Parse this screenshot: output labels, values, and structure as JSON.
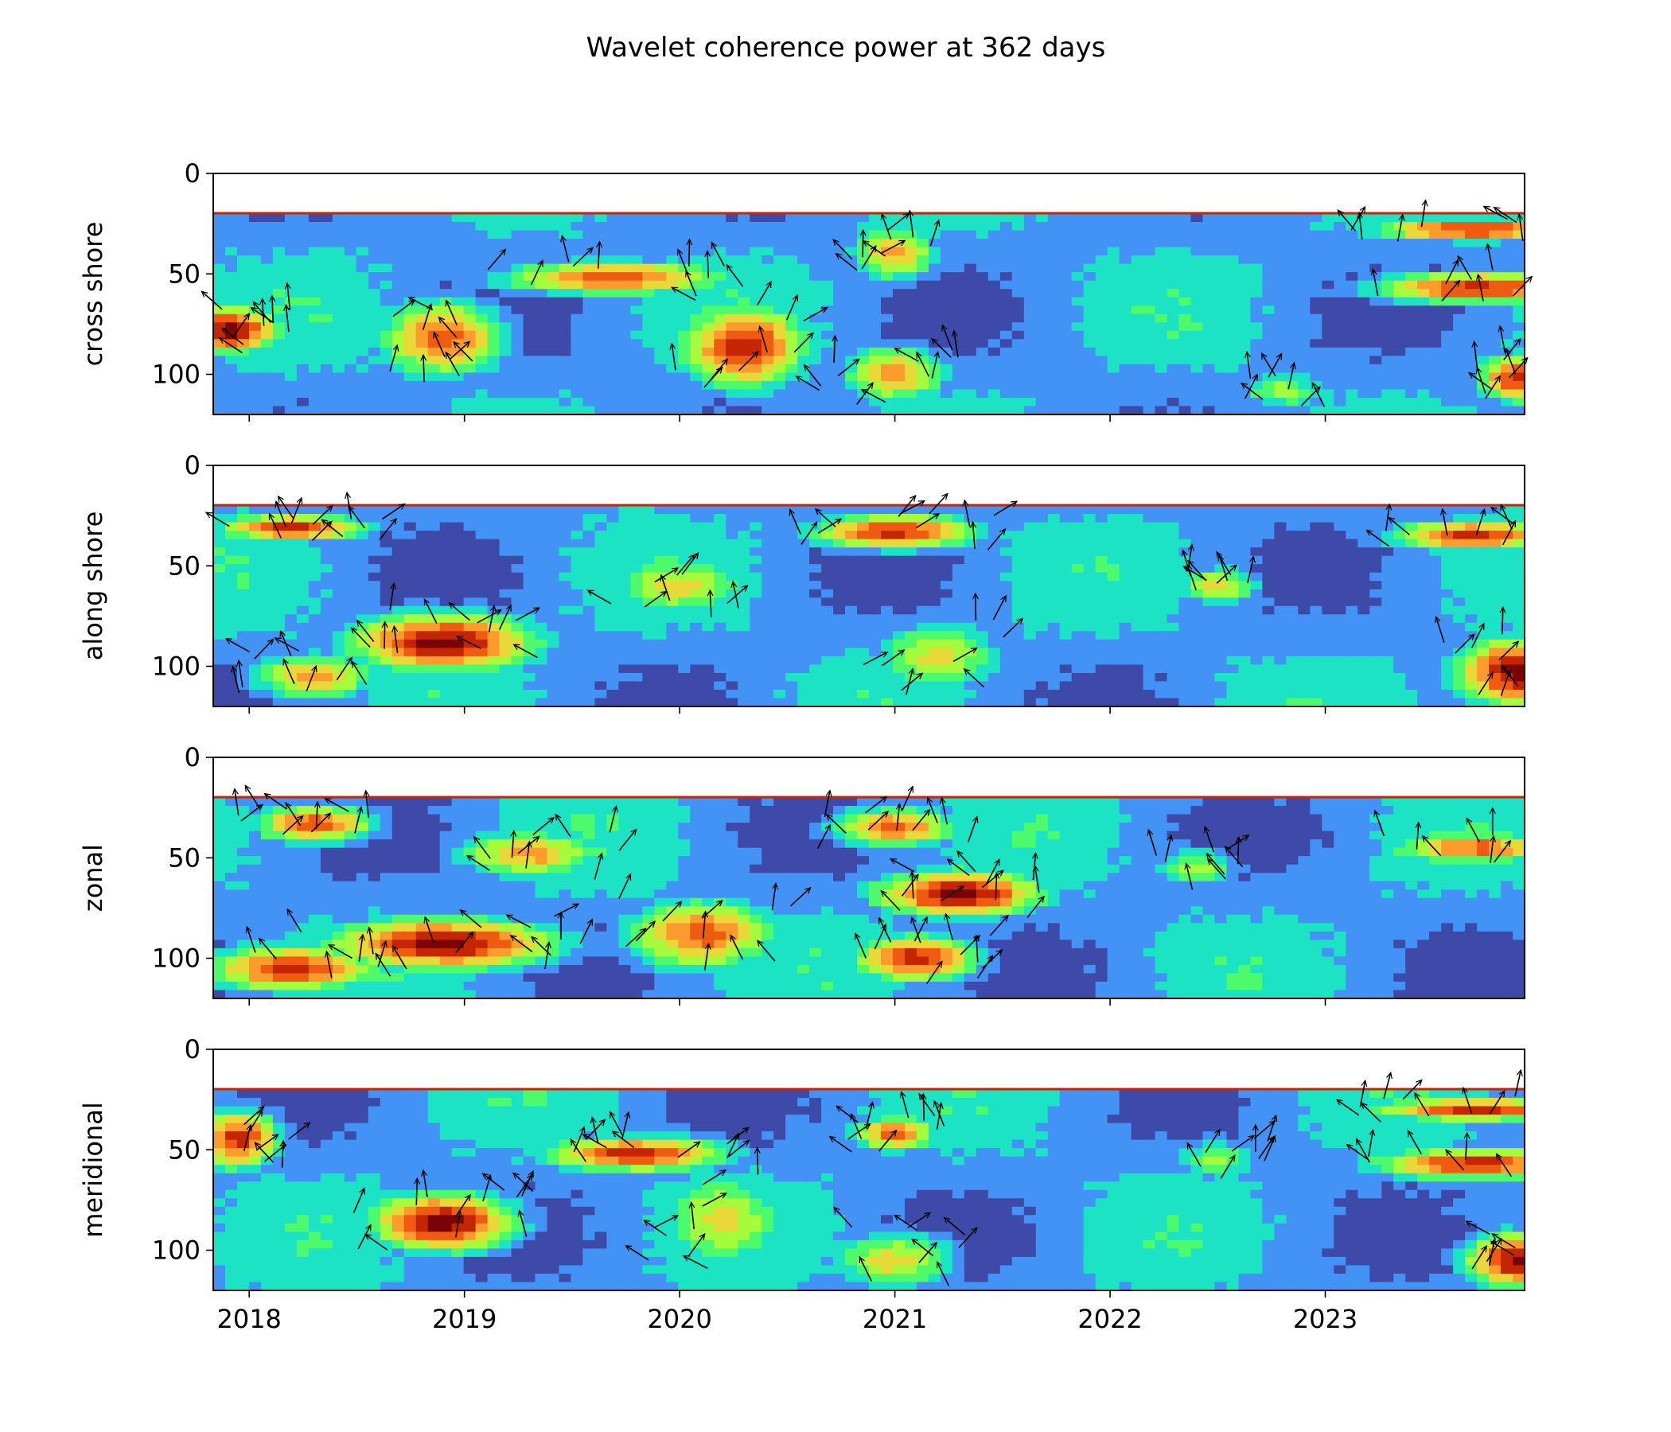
{
  "figure": {
    "title": "Wavelet coherence power at 362 days"
  },
  "chart_data": {
    "type": "heatmap",
    "title": "Wavelet coherence power at 362 days",
    "xaxis": {
      "range": [
        "2017-11-01",
        "2023-12-05"
      ],
      "ticks": [
        "2018",
        "2019",
        "2020",
        "2021",
        "2022",
        "2023"
      ]
    },
    "yaxis": {
      "range": [
        120,
        0
      ],
      "inverted": true,
      "ticks": [
        0,
        50,
        100
      ]
    },
    "colormap": [
      "#30123b",
      "#3e4aa8",
      "#4293f5",
      "#1be3c4",
      "#4dfa6b",
      "#a4fc3c",
      "#e8d838",
      "#fe9b2d",
      "#f05b12",
      "#c42503",
      "#7a0403"
    ],
    "panels": [
      {
        "ylabel": "cross shore",
        "data_top": 20,
        "hotspots": [
          {
            "t": 2017.9,
            "d": 78,
            "level": 10,
            "sx": 0.25,
            "sy": 12
          },
          {
            "t": 2018.9,
            "d": 82,
            "level": 8,
            "sx": 0.3,
            "sy": 20
          },
          {
            "t": 2019.7,
            "d": 52,
            "level": 8,
            "sx": 0.55,
            "sy": 9
          },
          {
            "t": 2020.3,
            "d": 86,
            "level": 9,
            "sx": 0.3,
            "sy": 22
          },
          {
            "t": 2021.0,
            "d": 40,
            "level": 7,
            "sx": 0.2,
            "sy": 14
          },
          {
            "t": 2021.0,
            "d": 100,
            "level": 7,
            "sx": 0.25,
            "sy": 15
          },
          {
            "t": 2023.7,
            "d": 28,
            "level": 9,
            "sx": 0.5,
            "sy": 6
          },
          {
            "t": 2023.7,
            "d": 57,
            "level": 9,
            "sx": 0.5,
            "sy": 8
          },
          {
            "t": 2023.9,
            "d": 102,
            "level": 9,
            "sx": 0.2,
            "sy": 12
          },
          {
            "t": 2022.8,
            "d": 108,
            "level": 5,
            "sx": 0.2,
            "sy": 10
          }
        ]
      },
      {
        "ylabel": "along shore",
        "data_top": 20,
        "hotspots": [
          {
            "t": 2018.2,
            "d": 31,
            "level": 9,
            "sx": 0.35,
            "sy": 7
          },
          {
            "t": 2018.9,
            "d": 88,
            "level": 10,
            "sx": 0.45,
            "sy": 15
          },
          {
            "t": 2018.3,
            "d": 105,
            "level": 7,
            "sx": 0.3,
            "sy": 12
          },
          {
            "t": 2021.0,
            "d": 33,
            "level": 9,
            "sx": 0.4,
            "sy": 9
          },
          {
            "t": 2020.0,
            "d": 60,
            "level": 6,
            "sx": 0.35,
            "sy": 15
          },
          {
            "t": 2021.2,
            "d": 95,
            "level": 6,
            "sx": 0.3,
            "sy": 18
          },
          {
            "t": 2022.5,
            "d": 60,
            "level": 6,
            "sx": 0.2,
            "sy": 10
          },
          {
            "t": 2023.7,
            "d": 35,
            "level": 9,
            "sx": 0.4,
            "sy": 8
          },
          {
            "t": 2023.9,
            "d": 103,
            "level": 10,
            "sx": 0.3,
            "sy": 18
          }
        ]
      },
      {
        "ylabel": "zonal",
        "data_top": 20,
        "hotspots": [
          {
            "t": 2018.3,
            "d": 33,
            "level": 8,
            "sx": 0.3,
            "sy": 10
          },
          {
            "t": 2018.9,
            "d": 93,
            "level": 10,
            "sx": 0.55,
            "sy": 13
          },
          {
            "t": 2018.2,
            "d": 105,
            "level": 9,
            "sx": 0.4,
            "sy": 12
          },
          {
            "t": 2019.3,
            "d": 48,
            "level": 7,
            "sx": 0.35,
            "sy": 12
          },
          {
            "t": 2020.1,
            "d": 88,
            "level": 8,
            "sx": 0.35,
            "sy": 18
          },
          {
            "t": 2021.3,
            "d": 68,
            "level": 10,
            "sx": 0.4,
            "sy": 12
          },
          {
            "t": 2021.1,
            "d": 100,
            "level": 9,
            "sx": 0.3,
            "sy": 12
          },
          {
            "t": 2021.0,
            "d": 35,
            "level": 8,
            "sx": 0.3,
            "sy": 10
          },
          {
            "t": 2022.4,
            "d": 55,
            "level": 5,
            "sx": 0.2,
            "sy": 10
          },
          {
            "t": 2023.7,
            "d": 45,
            "level": 8,
            "sx": 0.4,
            "sy": 8
          }
        ]
      },
      {
        "ylabel": "meridional",
        "data_top": 20,
        "hotspots": [
          {
            "t": 2017.95,
            "d": 45,
            "level": 9,
            "sx": 0.2,
            "sy": 15
          },
          {
            "t": 2018.9,
            "d": 86,
            "level": 10,
            "sx": 0.35,
            "sy": 15
          },
          {
            "t": 2019.8,
            "d": 52,
            "level": 9,
            "sx": 0.45,
            "sy": 9
          },
          {
            "t": 2020.2,
            "d": 85,
            "level": 6,
            "sx": 0.3,
            "sy": 25
          },
          {
            "t": 2021.0,
            "d": 42,
            "level": 8,
            "sx": 0.2,
            "sy": 9
          },
          {
            "t": 2021.0,
            "d": 105,
            "level": 6,
            "sx": 0.3,
            "sy": 15
          },
          {
            "t": 2023.7,
            "d": 30,
            "level": 9,
            "sx": 0.5,
            "sy": 6
          },
          {
            "t": 2023.7,
            "d": 57,
            "level": 9,
            "sx": 0.5,
            "sy": 8
          },
          {
            "t": 2023.9,
            "d": 105,
            "level": 10,
            "sx": 0.25,
            "sy": 14
          },
          {
            "t": 2022.5,
            "d": 55,
            "level": 5,
            "sx": 0.2,
            "sy": 10
          }
        ]
      }
    ]
  }
}
